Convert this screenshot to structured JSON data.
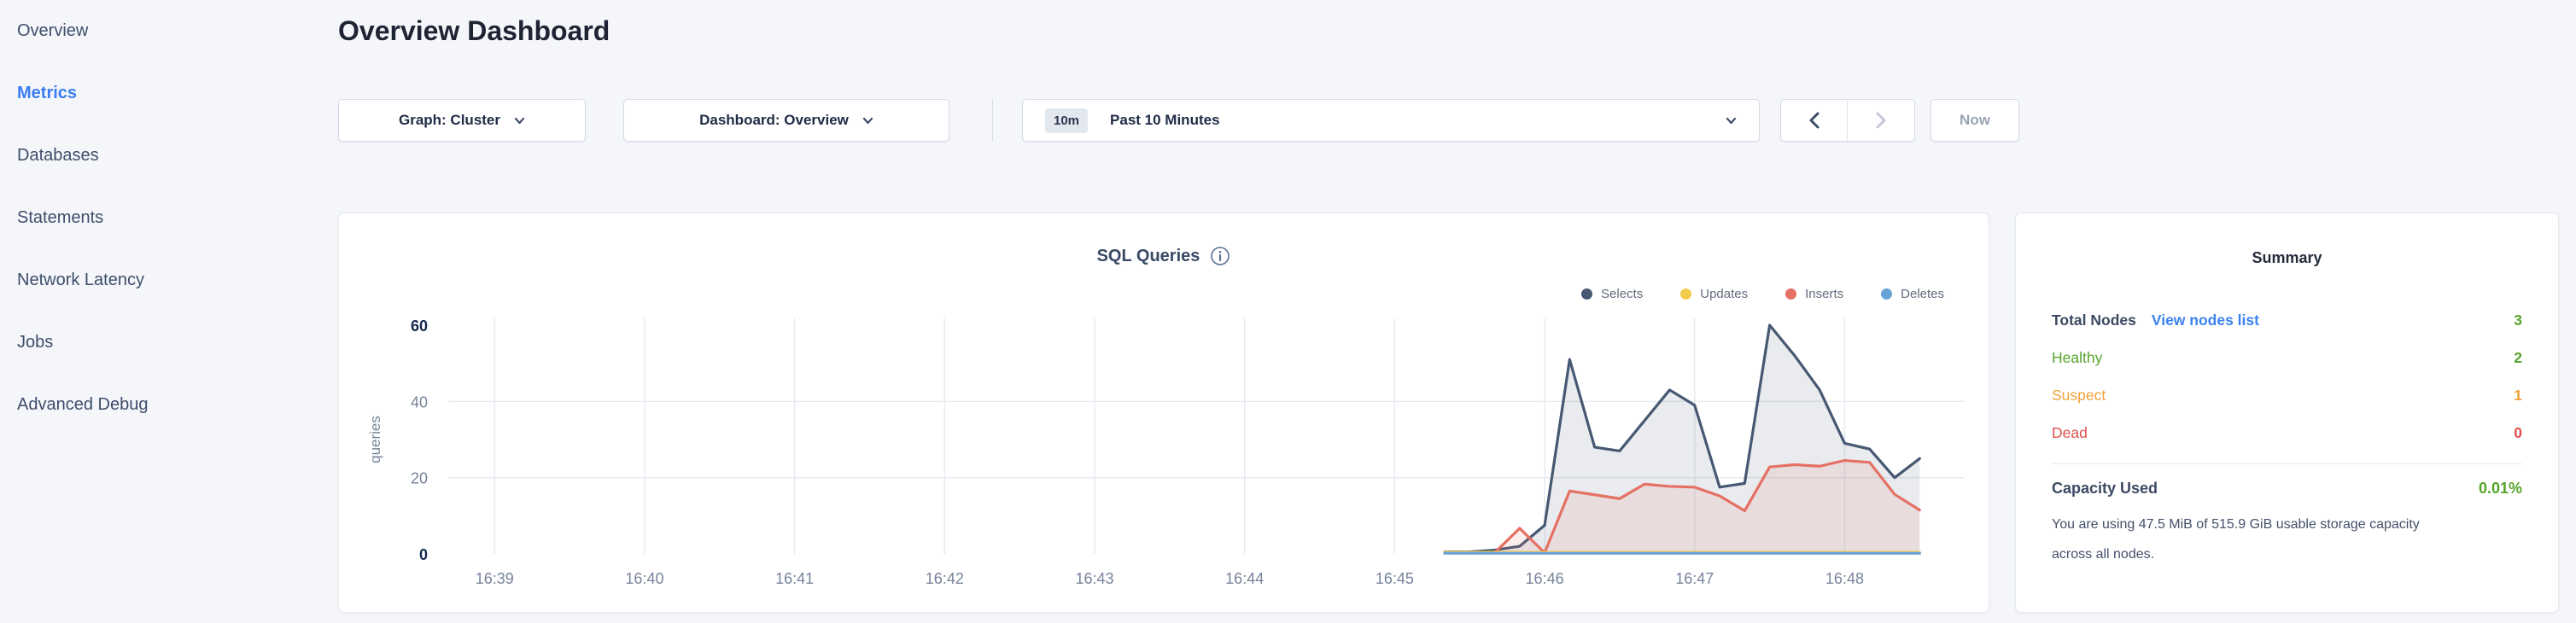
{
  "sidebar": {
    "items": [
      {
        "label": "Overview",
        "active": false
      },
      {
        "label": "Metrics",
        "active": true
      },
      {
        "label": "Databases",
        "active": false
      },
      {
        "label": "Statements",
        "active": false
      },
      {
        "label": "Network Latency",
        "active": false
      },
      {
        "label": "Jobs",
        "active": false
      },
      {
        "label": "Advanced Debug",
        "active": false
      }
    ]
  },
  "header": {
    "title": "Overview Dashboard"
  },
  "controls": {
    "graph_dropdown": "Graph: Cluster",
    "dashboard_dropdown": "Dashboard: Overview",
    "time_badge": "10m",
    "time_label": "Past 10 Minutes",
    "now_label": "Now"
  },
  "chart_data": {
    "type": "area",
    "title": "SQL Queries",
    "ylabel": "queries",
    "ylim": [
      0,
      60
    ],
    "yticks": [
      0,
      20,
      40,
      60
    ],
    "grid": true,
    "legend_position": "top-right",
    "x_tick_labels": [
      "16:39",
      "16:40",
      "16:41",
      "16:42",
      "16:43",
      "16:44",
      "16:45",
      "16:46",
      "16:47",
      "16:48"
    ],
    "x_times": [
      "16:45:20",
      "16:45:30",
      "16:45:40",
      "16:45:50",
      "16:46:00",
      "16:46:10",
      "16:46:20",
      "16:46:30",
      "16:46:40",
      "16:46:50",
      "16:47:00",
      "16:47:10",
      "16:47:20",
      "16:47:30",
      "16:47:40",
      "16:47:50",
      "16:48:00",
      "16:48:10",
      "16:48:20",
      "16:48:30"
    ],
    "series": [
      {
        "name": "Selects",
        "color": "#475872",
        "fill": "rgba(71,88,114,0.12)",
        "values": [
          0.5,
          0.5,
          1,
          2,
          7.5,
          51,
          28,
          27,
          35,
          43,
          39,
          17.5,
          18.5,
          60,
          52,
          43,
          29,
          27.5,
          20,
          25
        ]
      },
      {
        "name": "Inserts",
        "color": "#e57064",
        "fill": "rgba(229,112,100,0.12)",
        "values": [
          0.3,
          0.3,
          0.3,
          6.7,
          0.3,
          16.5,
          15.5,
          14.5,
          18.3,
          17.7,
          17.5,
          15.2,
          11.3,
          22.8,
          23.4,
          23,
          24.5,
          24,
          15.6,
          11.5
        ]
      },
      {
        "name": "Updates",
        "color": "#f2ca4c",
        "fill": "none",
        "values": [
          0.4,
          0.4,
          0.4,
          0.4,
          0.4,
          0.4,
          0.4,
          0.4,
          0.4,
          0.4,
          0.4,
          0.4,
          0.4,
          0.4,
          0.4,
          0.4,
          0.4,
          0.4,
          0.4,
          0.4
        ]
      },
      {
        "name": "Deletes",
        "color": "#67a3d9",
        "fill": "none",
        "values": [
          0.15,
          0.15,
          0.15,
          0.15,
          0.15,
          0.15,
          0.15,
          0.15,
          0.15,
          0.15,
          0.15,
          0.15,
          0.15,
          0.15,
          0.15,
          0.15,
          0.15,
          0.15,
          0.15,
          0.15
        ]
      }
    ],
    "legend_order": [
      "Selects",
      "Updates",
      "Inserts",
      "Deletes"
    ]
  },
  "summary": {
    "title": "Summary",
    "rows": [
      {
        "label": "Total Nodes",
        "link": "View nodes list",
        "value": "3"
      },
      {
        "label": "Healthy",
        "value": "2"
      },
      {
        "label": "Suspect",
        "value": "1"
      },
      {
        "label": "Dead",
        "value": "0"
      }
    ],
    "capacity": {
      "label": "Capacity Used",
      "value": "0.01%",
      "description": "You are using 47.5 MiB of 515.9 GiB usable storage capacity across all nodes."
    }
  }
}
